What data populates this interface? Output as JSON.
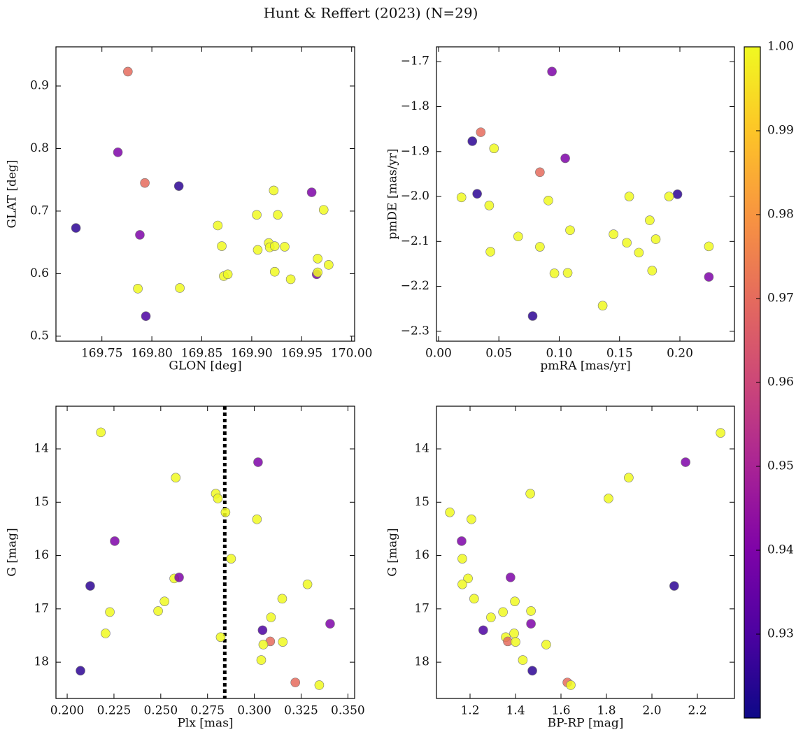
{
  "title": "Hunt & Reffert (2023) (N=29)",
  "chart_data": [
    {
      "type": "scatter",
      "xlabel": "GLON [deg]",
      "ylabel": "GLAT [deg]",
      "x": [
        169.776,
        169.766,
        169.793,
        169.827,
        169.724,
        169.788,
        169.786,
        169.828,
        169.794,
        169.866,
        169.87,
        169.872,
        169.876,
        169.905,
        169.906,
        169.917,
        169.918,
        169.922,
        169.923,
        169.926,
        169.923,
        169.933,
        169.939,
        169.96,
        169.965,
        169.966,
        169.966,
        169.972,
        169.977
      ],
      "y": [
        0.923,
        0.794,
        0.745,
        0.74,
        0.673,
        0.662,
        0.576,
        0.577,
        0.532,
        0.677,
        0.644,
        0.596,
        0.599,
        0.694,
        0.638,
        0.649,
        0.642,
        0.733,
        0.644,
        0.694,
        0.603,
        0.643,
        0.591,
        0.73,
        0.599,
        0.624,
        0.602,
        0.702,
        0.614
      ],
      "color_values": [
        0.97,
        0.94,
        0.97,
        0.925,
        0.925,
        0.94,
        1,
        1,
        0.93,
        1,
        1,
        1,
        1,
        1,
        1,
        1,
        1,
        1,
        1,
        1,
        1,
        1,
        1,
        0.94,
        0.94,
        1,
        1,
        1,
        1
      ],
      "xlim": [
        169.704,
        170.003
      ],
      "ylim": [
        0.492,
        0.9626
      ],
      "xticks": [
        169.75,
        {
          "value": 169.8,
          "label": "169.80"
        },
        169.85,
        {
          "value": 169.9,
          "label": "169.90"
        },
        169.95,
        {
          "value": 170,
          "label": "170.00"
        }
      ],
      "yticks": [
        0.5,
        0.6,
        0.7,
        0.8,
        0.9
      ]
    },
    {
      "type": "scatter",
      "xlabel": "pmRA [mas/yr]",
      "ylabel": "pmDE [mas/yr]",
      "x": [
        0.094,
        0.035,
        0.028,
        0.046,
        0.105,
        0.084,
        0.032,
        0.198,
        0.019,
        0.191,
        0.158,
        0.042,
        0.091,
        0.175,
        0.109,
        0.145,
        0.066,
        0.156,
        0.18,
        0.166,
        0.043,
        0.084,
        0.224,
        0.177,
        0.096,
        0.107,
        0.224,
        0.136,
        0.078
      ],
      "y": [
        -1.722,
        -1.857,
        -1.877,
        -1.893,
        -1.915,
        -1.946,
        -1.994,
        -1.995,
        -2.002,
        -2.0,
        -2.0,
        -2.02,
        -2.009,
        -2.053,
        -2.075,
        -2.084,
        -2.089,
        -2.103,
        -2.095,
        -2.125,
        -2.123,
        -2.112,
        -2.111,
        -2.165,
        -2.171,
        -2.17,
        -2.179,
        -2.243,
        -2.266
      ],
      "color_values": [
        0.94,
        0.97,
        0.925,
        1,
        0.94,
        0.97,
        0.925,
        0.925,
        1,
        1,
        1,
        1,
        1,
        1,
        1,
        1,
        1,
        1,
        1,
        1,
        1,
        1,
        1,
        1,
        1,
        1,
        0.94,
        1,
        0.925
      ],
      "xlim": [
        -0.0017,
        0.2452
      ],
      "ylim": [
        -2.322,
        -1.667
      ],
      "xticks": [
        {
          "value": 0,
          "label": "0.00"
        },
        0.05,
        {
          "value": 0.1,
          "label": "0.10"
        },
        0.15,
        {
          "value": 0.2,
          "label": "0.20"
        }
      ],
      "yticks": [
        {
          "value": -2.3,
          "label": "−2.3"
        },
        {
          "value": -2.2,
          "label": "−2.2"
        },
        {
          "value": -2.1,
          "label": "−2.1"
        },
        {
          "value": -2.0,
          "label": "−2.0"
        },
        {
          "value": -1.9,
          "label": "−1.9"
        },
        {
          "value": -1.8,
          "label": "−1.8"
        },
        {
          "value": -1.7,
          "label": "−1.7"
        }
      ]
    },
    {
      "type": "scatter",
      "xlabel": "Plx [mas]",
      "ylabel": "G [mag]",
      "y_inverted": true,
      "vline": 0.2842,
      "x": [
        0.218,
        0.258,
        0.302,
        0.2794,
        0.2805,
        0.2846,
        0.3014,
        0.2254,
        0.2876,
        0.2123,
        0.2572,
        0.2598,
        0.3284,
        0.3149,
        0.252,
        0.2486,
        0.2228,
        0.3089,
        0.3405,
        0.2205,
        0.3044,
        0.282,
        0.3085,
        0.3152,
        0.3048,
        0.3037,
        0.2071,
        0.3219,
        0.3347
      ],
      "y": [
        13.69,
        14.54,
        14.25,
        14.84,
        14.93,
        15.19,
        15.32,
        15.73,
        16.06,
        16.57,
        16.43,
        16.41,
        16.54,
        16.81,
        16.86,
        17.04,
        17.06,
        17.16,
        17.28,
        17.46,
        17.4,
        17.53,
        17.61,
        17.62,
        17.67,
        17.96,
        18.16,
        18.38,
        18.43
      ],
      "color_values": [
        1,
        1,
        0.94,
        1,
        1,
        1,
        1,
        0.94,
        1,
        0.925,
        1,
        0.94,
        1,
        1,
        1,
        1,
        1,
        1,
        0.94,
        1,
        0.93,
        1,
        0.97,
        1,
        1,
        1,
        0.925,
        0.97,
        1
      ],
      "xlim": [
        0.194,
        0.3536
      ],
      "ylim": [
        13.2,
        18.68
      ],
      "xticks": [
        {
          "value": 0.2,
          "label": "0.200"
        },
        0.225,
        {
          "value": 0.25,
          "label": "0.250"
        },
        0.275,
        {
          "value": 0.3,
          "label": "0.300"
        },
        0.325,
        {
          "value": 0.35,
          "label": "0.350"
        }
      ],
      "yticks": [
        14,
        15,
        16,
        17,
        18
      ]
    },
    {
      "type": "scatter",
      "xlabel": "BP-RP [mag]",
      "ylabel": "G [mag]",
      "y_inverted": true,
      "x": [
        2.302,
        2.148,
        1.898,
        1.465,
        1.809,
        1.111,
        1.206,
        1.163,
        1.166,
        1.378,
        1.191,
        1.166,
        2.098,
        1.218,
        1.397,
        1.468,
        1.345,
        1.292,
        1.468,
        1.394,
        1.258,
        1.357,
        1.366,
        1.4,
        1.535,
        1.432,
        1.474,
        1.628,
        1.643
      ],
      "y": [
        13.7,
        14.25,
        14.54,
        14.84,
        14.93,
        15.19,
        15.32,
        15.73,
        16.06,
        16.41,
        16.43,
        16.54,
        16.57,
        16.81,
        16.86,
        17.04,
        17.06,
        17.16,
        17.28,
        17.46,
        17.4,
        17.53,
        17.61,
        17.62,
        17.67,
        17.96,
        18.16,
        18.38,
        18.43
      ],
      "color_values": [
        1,
        0.94,
        1,
        1,
        1,
        1,
        1,
        0.94,
        1,
        0.94,
        1,
        1,
        0.925,
        1,
        1,
        1,
        1,
        1,
        0.94,
        1,
        0.93,
        1,
        0.97,
        1,
        1,
        1,
        0.925,
        0.97,
        1
      ],
      "xlim": [
        1.0523,
        2.363
      ],
      "ylim": [
        13.2,
        18.68
      ],
      "xticks": [
        1.2,
        1.4,
        1.6,
        1.8,
        {
          "value": 2.0,
          "label": "2.0"
        },
        2.2
      ],
      "yticks": [
        14,
        15,
        16,
        17,
        18
      ]
    },
    {
      "type": "colorbar",
      "colormap": "plasma",
      "ylim": [
        0.92,
        1.0
      ],
      "yticks": [
        0.93,
        0.94,
        0.95,
        0.96,
        0.97,
        0.98,
        0.99,
        {
          "value": 1,
          "label": "1.00"
        }
      ]
    }
  ]
}
